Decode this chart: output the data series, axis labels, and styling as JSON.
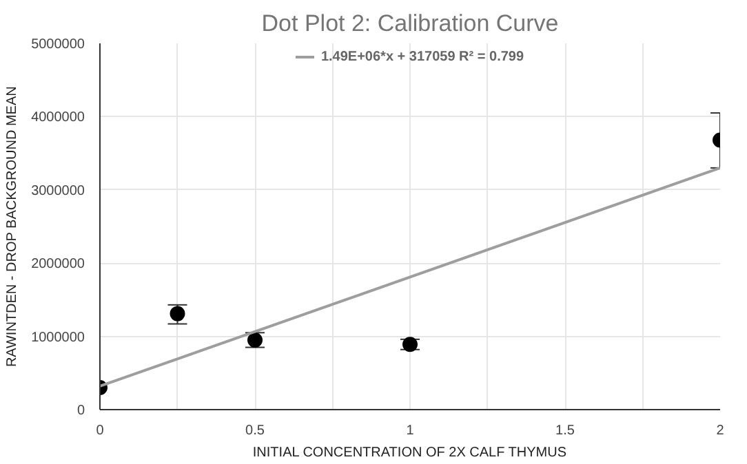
{
  "chart_data": {
    "type": "scatter",
    "title": "Dot Plot 2: Calibration Curve",
    "xlabel": "INITIAL CONCENTRATION OF 2X CALF THYMUS",
    "ylabel": "RAWINTDEN - DROP BACKGROUND MEAN",
    "x": [
      0,
      0.25,
      0.5,
      1,
      2
    ],
    "series": [
      {
        "color": "#000000",
        "values": [
          300000,
          1310000,
          950000,
          890000,
          3680000
        ],
        "errors": [
          null,
          [
            1170000,
            1430000
          ],
          [
            850000,
            1050000
          ],
          [
            820000,
            960000
          ],
          [
            3300000,
            4050000
          ]
        ]
      },
      {
        "type": "line",
        "name": "1.49E+06*x + 317059 R² = 0.799",
        "color": "#9e9e9e",
        "x": [
          0,
          2
        ],
        "values": [
          320000,
          3300000
        ],
        "marker": "none"
      }
    ],
    "xlim": [
      0,
      2
    ],
    "ylim": [
      0,
      5000000
    ],
    "xticks": [
      0,
      {
        "value": 0.25,
        "label": null
      },
      0.5,
      {
        "value": 0.75,
        "label": null
      },
      1,
      {
        "value": 1.25,
        "label": null
      },
      1.5,
      {
        "value": 1.75,
        "label": null
      },
      2
    ],
    "yticks": [
      0,
      1000000,
      2000000,
      3000000,
      4000000,
      5000000
    ],
    "grid": true,
    "legend": "top",
    "marker": "circle"
  }
}
